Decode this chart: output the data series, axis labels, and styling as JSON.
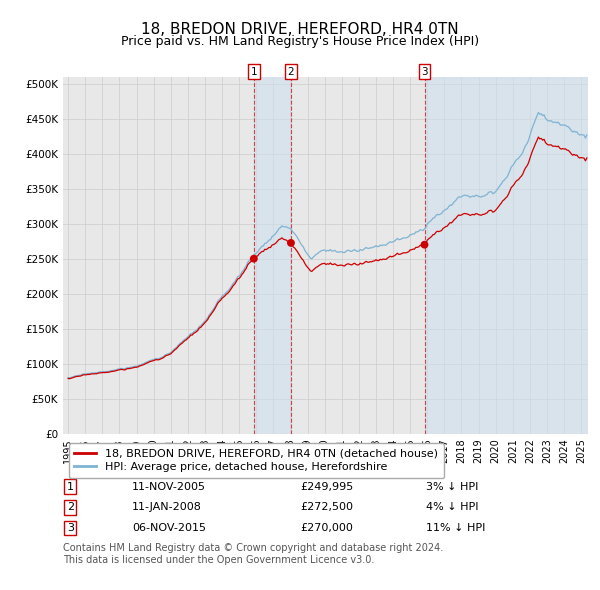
{
  "title": "18, BREDON DRIVE, HEREFORD, HR4 0TN",
  "subtitle": "Price paid vs. HM Land Registry's House Price Index (HPI)",
  "ylabel_ticks": [
    "£0",
    "£50K",
    "£100K",
    "£150K",
    "£200K",
    "£250K",
    "£300K",
    "£350K",
    "£400K",
    "£450K",
    "£500K"
  ],
  "ytick_values": [
    0,
    50000,
    100000,
    150000,
    200000,
    250000,
    300000,
    350000,
    400000,
    450000,
    500000
  ],
  "ylim": [
    0,
    510000
  ],
  "xlim_start": 1994.7,
  "xlim_end": 2025.4,
  "background_color": "#ffffff",
  "plot_bg_color": "#e8e8e8",
  "grid_color": "#cccccc",
  "hpi_line_color": "#7fb3d3",
  "price_line_color": "#cc0000",
  "sale_dot_color": "#cc0000",
  "vline_color": "#cc0000",
  "shade_color": "#cde0f0",
  "shade_alpha": 0.55,
  "legend_label_price": "18, BREDON DRIVE, HEREFORD, HR4 0TN (detached house)",
  "legend_label_hpi": "HPI: Average price, detached house, Herefordshire",
  "sale_events": [
    {
      "num": 1,
      "date_float": 2005.86,
      "price": 249995,
      "label": "11-NOV-2005",
      "pct": "3%",
      "dir": "↓"
    },
    {
      "num": 2,
      "date_float": 2008.03,
      "price": 272500,
      "label": "11-JAN-2008",
      "pct": "4%",
      "dir": "↓"
    },
    {
      "num": 3,
      "date_float": 2015.84,
      "price": 270000,
      "label": "06-NOV-2015",
      "pct": "11%",
      "dir": "↓"
    }
  ],
  "footer_line1": "Contains HM Land Registry data © Crown copyright and database right 2024.",
  "footer_line2": "This data is licensed under the Open Government Licence v3.0.",
  "title_fontsize": 11,
  "subtitle_fontsize": 9,
  "tick_fontsize": 7.5,
  "legend_fontsize": 8,
  "table_fontsize": 8,
  "footer_fontsize": 7
}
